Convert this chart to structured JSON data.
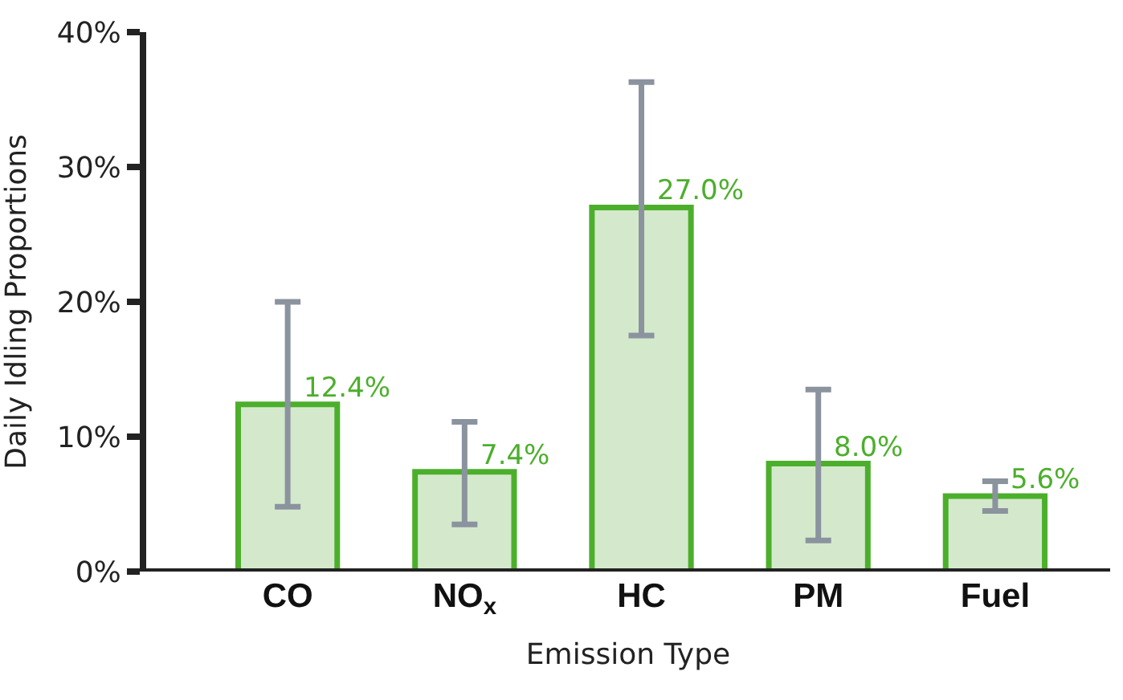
{
  "chart_data": {
    "type": "bar",
    "xlabel": "Emission Type",
    "ylabel": "Daily Idling Proportions",
    "categories": [
      "CO",
      "NO$_{x}$",
      "HC",
      "PM",
      "Fuel"
    ],
    "values": [
      12.4,
      7.4,
      27.0,
      8.0,
      5.6
    ],
    "value_labels": [
      "12.4%",
      "7.4%",
      "27.0%",
      "8.0%",
      "5.6%"
    ],
    "errors": [
      [
        4.8,
        20.0
      ],
      [
        3.5,
        11.1
      ],
      [
        17.5,
        36.3
      ],
      [
        2.3,
        13.5
      ],
      [
        4.5,
        6.7
      ]
    ],
    "color": "#d4e9cc",
    "ylim": [
      0,
      40
    ],
    "yticks": [
      {
        "value": 0,
        "label": "0%"
      },
      {
        "value": 10,
        "label": "10%"
      },
      {
        "value": 20,
        "label": "20%"
      },
      {
        "value": 30,
        "label": "30%"
      },
      {
        "value": 40,
        "label": "40%"
      }
    ],
    "legend": false
  }
}
